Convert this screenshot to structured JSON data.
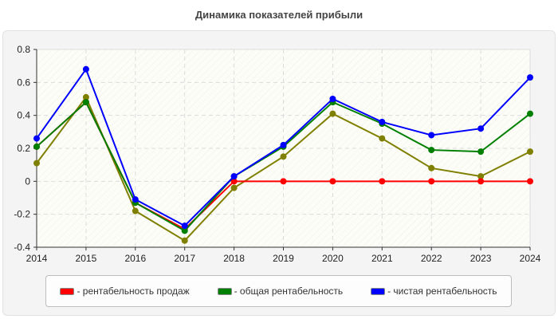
{
  "chart_data": {
    "type": "line",
    "title": "Динамика показателей прибыли",
    "x": [
      "2014",
      "2015",
      "2016",
      "2017",
      "2018",
      "2019",
      "2020",
      "2021",
      "2022",
      "2023",
      "2024"
    ],
    "ylim": [
      -0.4,
      0.8
    ],
    "yticks": [
      "0.8",
      "0.6",
      "0.4",
      "0.2",
      "0",
      "-0.2",
      "-0.4"
    ],
    "grid": true,
    "legend_position": "bottom",
    "series": [
      {
        "values": [
          0.11,
          0.51,
          -0.18,
          -0.36,
          -0.04,
          0.15,
          0.41,
          0.26,
          0.08,
          0.03,
          0.18
        ],
        "color": "#808000"
      },
      {
        "name": "- рентабельность продаж",
        "values": [
          0.21,
          0.48,
          -0.13,
          -0.29,
          0,
          0,
          0,
          0,
          0,
          0,
          0
        ],
        "color": "#ff0000"
      },
      {
        "name": "- общая рентабельность",
        "values": [
          0.21,
          0.48,
          -0.13,
          -0.3,
          0.03,
          0.21,
          0.48,
          0.35,
          0.19,
          0.18,
          0.41
        ],
        "color": "#008000"
      },
      {
        "name": "- чистая рентабельность",
        "values": [
          0.26,
          0.68,
          -0.11,
          -0.27,
          0.03,
          0.22,
          0.5,
          0.36,
          0.28,
          0.32,
          0.63
        ],
        "color": "#0000ff"
      }
    ]
  }
}
